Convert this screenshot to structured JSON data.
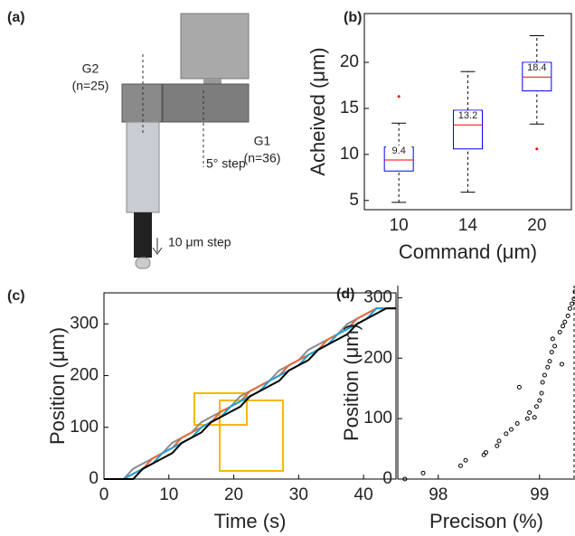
{
  "illustration": {
    "panel_label": "(a)",
    "labels": [
      "G2",
      "(n=25)",
      "G1",
      "(n=36)",
      "5° step",
      "10 μm step"
    ]
  },
  "chart_data": [
    {
      "type": "box",
      "panel_label": "(b)",
      "xlabel": "Command (μm)",
      "ylabel": "Acheived (μm)",
      "categories": [
        "10",
        "14",
        "20"
      ],
      "boxes": [
        {
          "whislo": 4.8,
          "q1": 8.2,
          "median": 9.4,
          "q3": 10.8,
          "whishi": 13.4,
          "fliers": [
            16.3
          ]
        },
        {
          "whislo": 5.9,
          "q1": 10.6,
          "median": 13.2,
          "q3": 14.8,
          "whishi": 19,
          "fliers": []
        },
        {
          "whislo": 13.3,
          "q1": 16.9,
          "median": 18.4,
          "q3": 20,
          "whishi": 22.9,
          "fliers": [
            10.6
          ]
        }
      ],
      "value_labels": [
        "9.4",
        "13.2",
        "18.4"
      ],
      "color": "#0000ff",
      "median_color": "#ff0000",
      "ylim": [
        4,
        25.3
      ],
      "yticks": [
        5,
        10,
        15,
        20
      ]
    },
    {
      "type": "line",
      "panel_label": "(c)",
      "xlabel": "Time (s)",
      "ylabel": "Position (μm)",
      "x": [
        0,
        1.5,
        3,
        4.5,
        6,
        7.5,
        9,
        10.5,
        12,
        13.5,
        15,
        16.5,
        18,
        19.5,
        21,
        22.5,
        24,
        25.5,
        27,
        28.5,
        30,
        31.5,
        33,
        34.5,
        36,
        37.5,
        39,
        40.5,
        42,
        43.5,
        45
      ],
      "series": [
        {
          "color": "#8c8c8c",
          "values": [
            0,
            0,
            0,
            20,
            30,
            40,
            50,
            70,
            80,
            90,
            110,
            120,
            130,
            140,
            160,
            170,
            180,
            190,
            210,
            220,
            230,
            250,
            260,
            270,
            280,
            300,
            310,
            320,
            330,
            330,
            330
          ]
        },
        {
          "color": "#e5683a",
          "values": [
            0,
            0,
            0,
            10,
            20,
            40,
            50,
            60,
            80,
            90,
            100,
            110,
            130,
            140,
            150,
            170,
            180,
            190,
            200,
            220,
            230,
            240,
            250,
            270,
            280,
            290,
            310,
            320,
            330,
            330,
            330
          ]
        },
        {
          "color": "#1ba3d9",
          "values": [
            0,
            0,
            0,
            10,
            20,
            30,
            50,
            60,
            70,
            80,
            100,
            110,
            120,
            140,
            150,
            160,
            170,
            190,
            200,
            210,
            220,
            240,
            250,
            260,
            280,
            290,
            300,
            310,
            330,
            330,
            330
          ]
        },
        {
          "color": "#000000",
          "values": [
            0,
            0,
            0,
            0,
            20,
            30,
            40,
            50,
            70,
            80,
            90,
            110,
            120,
            130,
            140,
            160,
            170,
            180,
            190,
            210,
            220,
            230,
            250,
            260,
            270,
            280,
            300,
            310,
            320,
            330,
            330
          ]
        }
      ],
      "xlim": [
        0,
        45
      ],
      "xticks": [
        0,
        10,
        20,
        30,
        40
      ],
      "ylim": [
        0,
        360
      ],
      "yticks": [
        0,
        100,
        200,
        300
      ]
    },
    {
      "type": "scatter",
      "panel_label": "(d)",
      "xlabel": "Precison (%)",
      "ylabel": "Position (μm)",
      "x": [
        97.67,
        97.85,
        98.22,
        98.27,
        98.45,
        98.47,
        98.58,
        98.6,
        98.67,
        98.72,
        98.78,
        98.8,
        98.88,
        98.9,
        98.95,
        98.97,
        99.0,
        99.02,
        99.03,
        99.05,
        99.08,
        99.1,
        99.12,
        99.13,
        99.15,
        99.2,
        99.22,
        99.23,
        99.25,
        99.28,
        99.3,
        99.32,
        99.34,
        99.35
      ],
      "y": [
        0,
        10,
        22,
        31,
        40,
        44,
        55,
        63,
        75,
        82,
        92,
        152,
        100,
        110,
        102,
        120,
        130,
        142,
        160,
        172,
        185,
        195,
        210,
        232,
        220,
        243,
        190,
        253,
        260,
        270,
        282,
        290,
        298,
        310
      ],
      "color": "#000000",
      "xlim": [
        97.6,
        99.35
      ],
      "xticks": [
        98,
        99
      ],
      "ylim": [
        0,
        320
      ],
      "yticks": [
        0,
        100,
        200,
        300
      ]
    }
  ]
}
